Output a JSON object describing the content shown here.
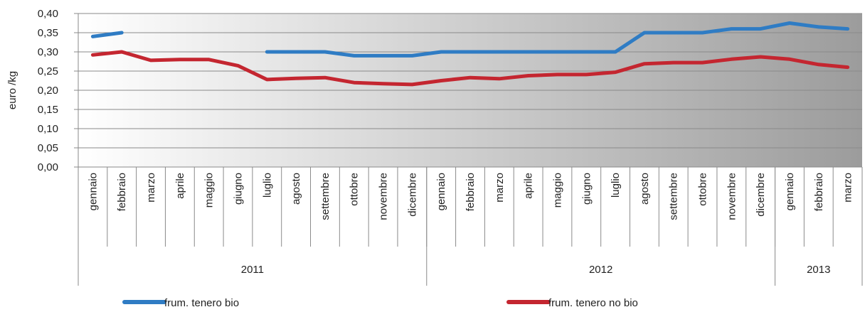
{
  "chart_data": {
    "type": "line",
    "title": "",
    "ylabel": "euro /kg",
    "xlabel": "",
    "ylim": [
      0,
      0.4
    ],
    "ytick_step": 0.05,
    "ytick_labels": [
      "0,00",
      "0,05",
      "0,10",
      "0,15",
      "0,20",
      "0,25",
      "0,30",
      "0,35",
      "0,40"
    ],
    "grid": true,
    "legend_position": "bottom",
    "categories": [
      "gennaio",
      "febbraio",
      "marzo",
      "aprile",
      "maggio",
      "giugno",
      "luglio",
      "agosto",
      "settembre",
      "ottobre",
      "novembre",
      "dicembre",
      "gennaio",
      "febbraio",
      "marzo",
      "aprile",
      "maggio",
      "giugno",
      "luglio",
      "agosto",
      "settembre",
      "ottobre",
      "novembre",
      "dicembre",
      "gennaio",
      "febbraio",
      "marzo"
    ],
    "years": [
      {
        "label": "2011",
        "span": 12
      },
      {
        "label": "2012",
        "span": 12
      },
      {
        "label": "2013",
        "span": 3
      }
    ],
    "series": [
      {
        "name": "frum. tenero bio",
        "color": "#2f7cc4",
        "values": [
          0.34,
          0.35,
          null,
          null,
          null,
          null,
          0.3,
          0.3,
          0.3,
          0.29,
          0.29,
          0.29,
          0.3,
          0.3,
          0.3,
          0.3,
          0.3,
          0.3,
          0.3,
          0.35,
          0.35,
          0.35,
          0.36,
          0.36,
          0.375,
          0.365,
          0.36
        ]
      },
      {
        "name": "frum. tenero no bio",
        "color": "#c42630",
        "values": [
          0.292,
          0.3,
          0.278,
          0.28,
          0.28,
          0.264,
          0.228,
          0.231,
          0.233,
          0.22,
          0.217,
          0.215,
          0.225,
          0.233,
          0.23,
          0.238,
          0.241,
          0.241,
          0.247,
          0.269,
          0.272,
          0.272,
          0.281,
          0.287,
          0.281,
          0.267,
          0.26
        ]
      }
    ]
  }
}
